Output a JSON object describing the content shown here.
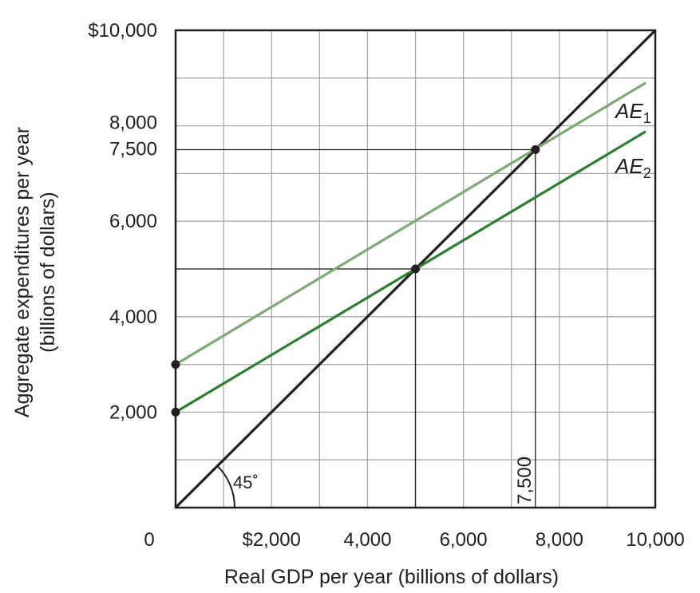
{
  "chart_data": {
    "type": "line",
    "title": "",
    "xlabel": "Real GDP per year (billions of dollars)",
    "ylabel_line1": "Aggregate expenditures per year",
    "ylabel_line2": "(billions of dollars)",
    "xlim": [
      0,
      10000
    ],
    "ylim": [
      0,
      10000
    ],
    "grid": true,
    "x_ticks": [
      {
        "value": 0,
        "label": "0"
      },
      {
        "value": 2000,
        "label": "$2,000"
      },
      {
        "value": 4000,
        "label": "4,000"
      },
      {
        "value": 6000,
        "label": "6,000"
      },
      {
        "value": 8000,
        "label": "8,000"
      },
      {
        "value": 10000,
        "label": "10,000"
      }
    ],
    "y_ticks": [
      {
        "value": 2000,
        "label": "2,000"
      },
      {
        "value": 4000,
        "label": "4,000"
      },
      {
        "value": 6000,
        "label": "6,000"
      },
      {
        "value": 7500,
        "label": "7,500"
      },
      {
        "value": 8000,
        "label": "8,000"
      },
      {
        "value": 10000,
        "label": "$10,000"
      }
    ],
    "x_reference_label": {
      "value": 7500,
      "label": "7,500"
    },
    "series": [
      {
        "name": "45-degree line",
        "x": [
          0,
          10000
        ],
        "y": [
          0,
          10000
        ],
        "color": "#231f20"
      },
      {
        "name": "AE1",
        "label_main": "AE",
        "label_sub": "1",
        "x": [
          0,
          9800
        ],
        "y": [
          3000,
          8900
        ],
        "color": "#7fa876"
      },
      {
        "name": "AE2",
        "label_main": "AE",
        "label_sub": "2",
        "x": [
          0,
          9800
        ],
        "y": [
          2000,
          7880
        ],
        "color": "#2e7d32"
      }
    ],
    "points": [
      {
        "x": 0,
        "y": 3000
      },
      {
        "x": 0,
        "y": 2000
      },
      {
        "x": 5000,
        "y": 5000
      },
      {
        "x": 7500,
        "y": 7500
      }
    ],
    "reference_lines": [
      {
        "x": 5000,
        "y": 5000
      },
      {
        "x": 7500,
        "y": 7500
      }
    ],
    "angle_annotation": {
      "label": "45˚"
    }
  }
}
